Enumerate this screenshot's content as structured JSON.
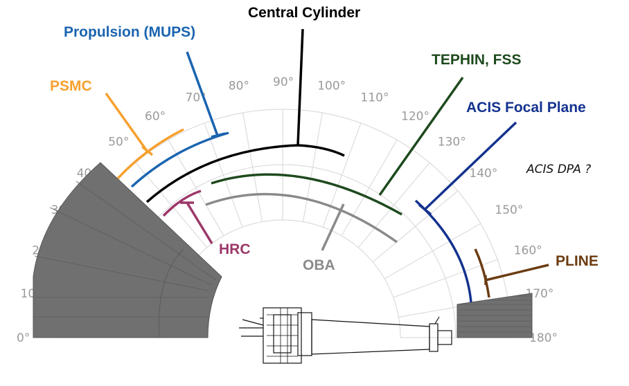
{
  "diagram": {
    "angle_ticks": [
      "0°",
      "10°",
      "20°",
      "30°",
      "40°",
      "50°",
      "60°",
      "70°",
      "80°",
      "90°",
      "100°",
      "110°",
      "120°",
      "130°",
      "140°",
      "150°",
      "160°",
      "170°",
      "180°"
    ],
    "components": [
      {
        "id": "psmc",
        "label": "PSMC",
        "color": "#f7a02e",
        "angle_range": [
          40,
          56
        ]
      },
      {
        "id": "mups",
        "label": "Propulsion (MUPS)",
        "color": "#1a64b0",
        "angle_range": [
          41,
          72
        ]
      },
      {
        "id": "central",
        "label": "Central Cylinder",
        "color": "#000000",
        "angle_range": [
          45,
          112
        ]
      },
      {
        "id": "tephin",
        "label": "TEPHIN, FSS",
        "color": "#1e4a1e",
        "angle_range": [
          70,
          139
        ]
      },
      {
        "id": "acis_fp",
        "label": "ACIS Focal Plane",
        "color": "#14338f",
        "angle_range": [
          136,
          175
        ]
      },
      {
        "id": "hrc",
        "label": "HRC",
        "color": "#9b3768",
        "angle_range": [
          44,
          67
        ]
      },
      {
        "id": "oba",
        "label": "OBA",
        "color": "#8a8a8a",
        "angle_range": [
          70,
          138
        ]
      },
      {
        "id": "pline",
        "label": "PLINE",
        "color": "#6b3c12",
        "angle_range": [
          160,
          176
        ]
      }
    ],
    "question_label": "ACIS DPA ?"
  }
}
